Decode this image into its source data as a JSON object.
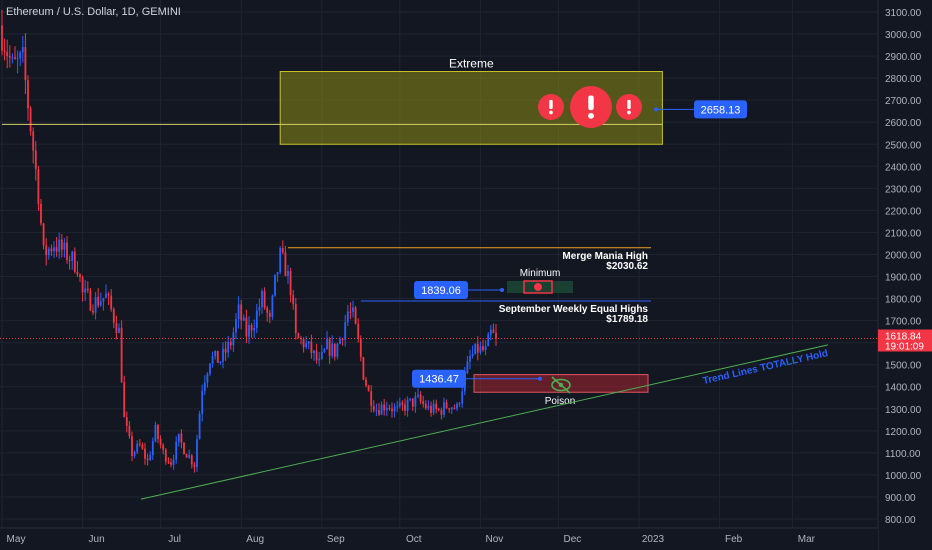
{
  "title": "Ethereum / U.S. Dollar, 1D, GEMINI",
  "colors": {
    "background": "#131722",
    "grid": "#1f2430",
    "up": "#2962ff",
    "down": "#f23645",
    "text": "#d1d4dc",
    "price_tag": "#f23645",
    "callout": "#2962ff",
    "extreme_zone": "#8a8a14",
    "poison_zone": "#c62834",
    "trend_line": "#4caf50",
    "trend_text": "#2962ff",
    "merge_line": "#f0a020",
    "sept_line": "#2962ff"
  },
  "chart_data": {
    "type": "candlestick",
    "title": "Ethereum / U.S. Dollar, 1D, GEMINI",
    "y_axis": {
      "min": 800,
      "max": 3100,
      "ticks": [
        "3100.00",
        "3000.00",
        "2900.00",
        "2800.00",
        "2700.00",
        "2600.00",
        "2500.00",
        "2400.00",
        "2300.00",
        "2200.00",
        "2100.00",
        "2000.00",
        "1900.00",
        "1800.00",
        "1700.00",
        "1600.00",
        "1500.00",
        "1400.00",
        "1300.00",
        "1200.00",
        "1100.00",
        "1000.00",
        "900.00",
        "800.00"
      ],
      "tick_values": [
        3100,
        3000,
        2900,
        2800,
        2700,
        2600,
        2500,
        2400,
        2300,
        2200,
        2100,
        2000,
        1900,
        1800,
        1700,
        1600,
        1500,
        1400,
        1300,
        1200,
        1100,
        1000,
        900,
        800
      ]
    },
    "x_axis": {
      "labels": [
        {
          "text": "May",
          "day": 0
        },
        {
          "text": "Jun",
          "day": 31
        },
        {
          "text": "Jul",
          "day": 61
        },
        {
          "text": "Aug",
          "day": 92
        },
        {
          "text": "Sep",
          "day": 123
        },
        {
          "text": "Oct",
          "day": 153
        },
        {
          "text": "Nov",
          "day": 184
        },
        {
          "text": "Dec",
          "day": 214
        },
        {
          "text": "2023",
          "day": 245
        },
        {
          "text": "Feb",
          "day": 276
        },
        {
          "text": "Mar",
          "day": 304
        }
      ]
    },
    "last_price": {
      "value": 1618.84,
      "label": "1618.84",
      "countdown": "19:01:09"
    },
    "anchors": [
      {
        "day": 0,
        "price": 3000
      },
      {
        "day": 4,
        "price": 2850
      },
      {
        "day": 8,
        "price": 2880
      },
      {
        "day": 11,
        "price": 2580
      },
      {
        "day": 14,
        "price": 2280
      },
      {
        "day": 16,
        "price": 2000
      },
      {
        "day": 20,
        "price": 2050
      },
      {
        "day": 25,
        "price": 2000
      },
      {
        "day": 29,
        "price": 1950
      },
      {
        "day": 31,
        "price": 1820
      },
      {
        "day": 35,
        "price": 1780
      },
      {
        "day": 40,
        "price": 1810
      },
      {
        "day": 45,
        "price": 1650
      },
      {
        "day": 47,
        "price": 1250
      },
      {
        "day": 50,
        "price": 1100
      },
      {
        "day": 53,
        "price": 1130
      },
      {
        "day": 56,
        "price": 1060
      },
      {
        "day": 59,
        "price": 1200
      },
      {
        "day": 62,
        "price": 1100
      },
      {
        "day": 65,
        "price": 1060
      },
      {
        "day": 68,
        "price": 1160
      },
      {
        "day": 71,
        "price": 1100
      },
      {
        "day": 74,
        "price": 1050
      },
      {
        "day": 77,
        "price": 1400
      },
      {
        "day": 80,
        "price": 1530
      },
      {
        "day": 84,
        "price": 1520
      },
      {
        "day": 88,
        "price": 1600
      },
      {
        "day": 91,
        "price": 1740
      },
      {
        "day": 94,
        "price": 1640
      },
      {
        "day": 97,
        "price": 1700
      },
      {
        "day": 100,
        "price": 1800
      },
      {
        "day": 103,
        "price": 1690
      },
      {
        "day": 105,
        "price": 1870
      },
      {
        "day": 107,
        "price": 1990
      },
      {
        "day": 109,
        "price": 1940
      },
      {
        "day": 111,
        "price": 1850
      },
      {
        "day": 113,
        "price": 1620
      },
      {
        "day": 116,
        "price": 1600
      },
      {
        "day": 119,
        "price": 1560
      },
      {
        "day": 122,
        "price": 1500
      },
      {
        "day": 125,
        "price": 1580
      },
      {
        "day": 128,
        "price": 1560
      },
      {
        "day": 131,
        "price": 1650
      },
      {
        "day": 133,
        "price": 1740
      },
      {
        "day": 135,
        "price": 1720
      },
      {
        "day": 137,
        "price": 1600
      },
      {
        "day": 139,
        "price": 1460
      },
      {
        "day": 141,
        "price": 1370
      },
      {
        "day": 144,
        "price": 1300
      },
      {
        "day": 148,
        "price": 1320
      },
      {
        "day": 152,
        "price": 1290
      },
      {
        "day": 156,
        "price": 1320
      },
      {
        "day": 160,
        "price": 1340
      },
      {
        "day": 164,
        "price": 1300
      },
      {
        "day": 168,
        "price": 1290
      },
      {
        "day": 172,
        "price": 1320
      },
      {
        "day": 175,
        "price": 1300
      },
      {
        "day": 177,
        "price": 1400
      },
      {
        "day": 180,
        "price": 1530
      },
      {
        "day": 183,
        "price": 1570
      },
      {
        "day": 186,
        "price": 1560
      },
      {
        "day": 188,
        "price": 1640
      },
      {
        "day": 190,
        "price": 1618.84
      }
    ],
    "annotations": {
      "extreme_zone": {
        "label": "Extreme",
        "from_day": 107,
        "to_day": 254,
        "low": 2500,
        "high": 2830
      },
      "extreme_line": {
        "price": 2590,
        "from_day": 0,
        "to_day": 254
      },
      "extreme_callout": {
        "label": "2658.13",
        "price": 2658.13,
        "day": 258
      },
      "merge_mania": {
        "line1": "Merge Mania High",
        "line2": "$2030.62",
        "price": 2030.62,
        "from_day": 110,
        "to_day": 255
      },
      "sept_highs": {
        "line1": "September Weekly Equal Highs",
        "line2": "$1789.18",
        "price": 1789.18,
        "from_day": 138,
        "to_day": 255
      },
      "minimum_zone": {
        "label": "Minimum",
        "from_day": 197,
        "to_day": 223,
        "low": 1770,
        "high": 1830
      },
      "minimum_callout": {
        "label": "1839.06",
        "price": 1839.06,
        "day": 196
      },
      "poison_zone": {
        "label": "Poison",
        "from_day": 183,
        "to_day": 254,
        "low": 1375,
        "high": 1455
      },
      "poison_callout": {
        "label": "1436.47",
        "price": 1436.47,
        "day": 210
      },
      "trend_line": {
        "label": "Trend Lines TOTALLY Hold",
        "from": {
          "day": 54,
          "price": 890
        },
        "to": {
          "day": 325,
          "price": 1590
        }
      }
    }
  }
}
